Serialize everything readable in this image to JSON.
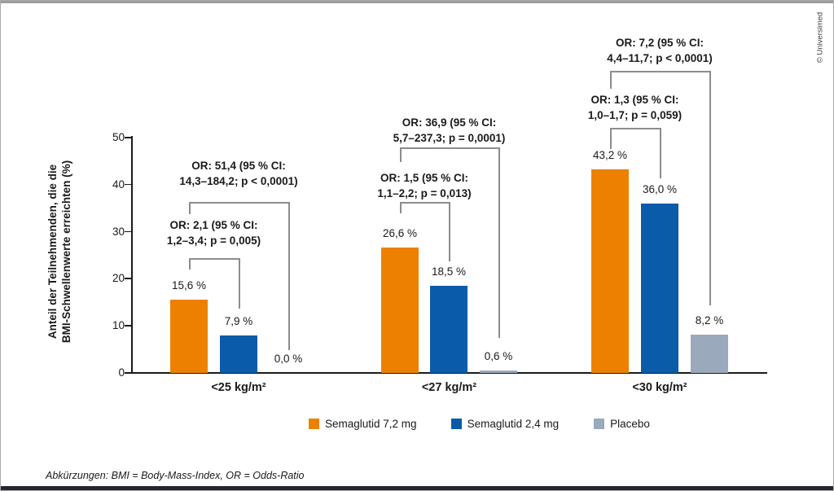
{
  "publisher_credit": "© Universimed",
  "footer_note": "Abkürzungen: BMI = Body-Mass-Index, OR = Odds-Ratio",
  "colors": {
    "semaglutid_7_2": "#EE8000",
    "semaglutid_2_4": "#0A5BA9",
    "placebo": "#9AA9BC",
    "bracket": "#8C8C8C",
    "axis": "#1A1A1A",
    "top_rule": "#9B9B9B",
    "bottom_rule": "#23272C"
  },
  "chart_data": {
    "type": "bar",
    "title": "",
    "ylabel_lines": [
      "Anteil der Teilnehmenden, die die",
      "BMI-Schwellenwerte erreichten (%)"
    ],
    "ylim": [
      0,
      50
    ],
    "yticks": [
      0,
      10,
      20,
      30,
      40,
      50
    ],
    "grid": false,
    "legend_position": "bottom",
    "categories": [
      "<25 kg/m²",
      "<27 kg/m²",
      "<30 kg/m²"
    ],
    "series": [
      {
        "name": "Semaglutid 7,2 mg",
        "color": "#EE8000",
        "values": [
          15.6,
          26.6,
          43.2
        ],
        "labels": [
          "15,6 %",
          "26,6 %",
          "43,2 %"
        ]
      },
      {
        "name": "Semaglutid 2,4 mg",
        "color": "#0A5BA9",
        "values": [
          7.9,
          18.5,
          36.0
        ],
        "labels": [
          "7,9 %",
          "18,5 %",
          "36,0 %"
        ]
      },
      {
        "name": "Placebo",
        "color": "#9AA9BC",
        "values": [
          0.0,
          0.6,
          8.2
        ],
        "labels": [
          "0,0 %",
          "0,6 %",
          "8,2 %"
        ]
      }
    ],
    "annotations": [
      {
        "group": 0,
        "from_series": 0,
        "to_series": 1,
        "lines": [
          "OR: 2,1 (95 % CI:",
          "1,2–3,4; p = 0,005)"
        ]
      },
      {
        "group": 0,
        "from_series": 0,
        "to_series": 2,
        "lines": [
          "OR: 51,4 (95 % CI:",
          "14,3–184,2; p < 0,0001)"
        ]
      },
      {
        "group": 1,
        "from_series": 0,
        "to_series": 1,
        "lines": [
          "OR: 1,5 (95 % CI:",
          "1,1–2,2; p = 0,013)"
        ]
      },
      {
        "group": 1,
        "from_series": 0,
        "to_series": 2,
        "lines": [
          "OR: 36,9 (95 % CI:",
          "5,7–237,3; p = 0,0001)"
        ]
      },
      {
        "group": 2,
        "from_series": 0,
        "to_series": 1,
        "lines": [
          "OR: 1,3 (95 % CI:",
          "1,0–1,7; p = 0,059)"
        ]
      },
      {
        "group": 2,
        "from_series": 0,
        "to_series": 2,
        "lines": [
          "OR: 7,2 (95 % CI:",
          "4,4–11,7; p < 0,0001)"
        ]
      }
    ]
  }
}
